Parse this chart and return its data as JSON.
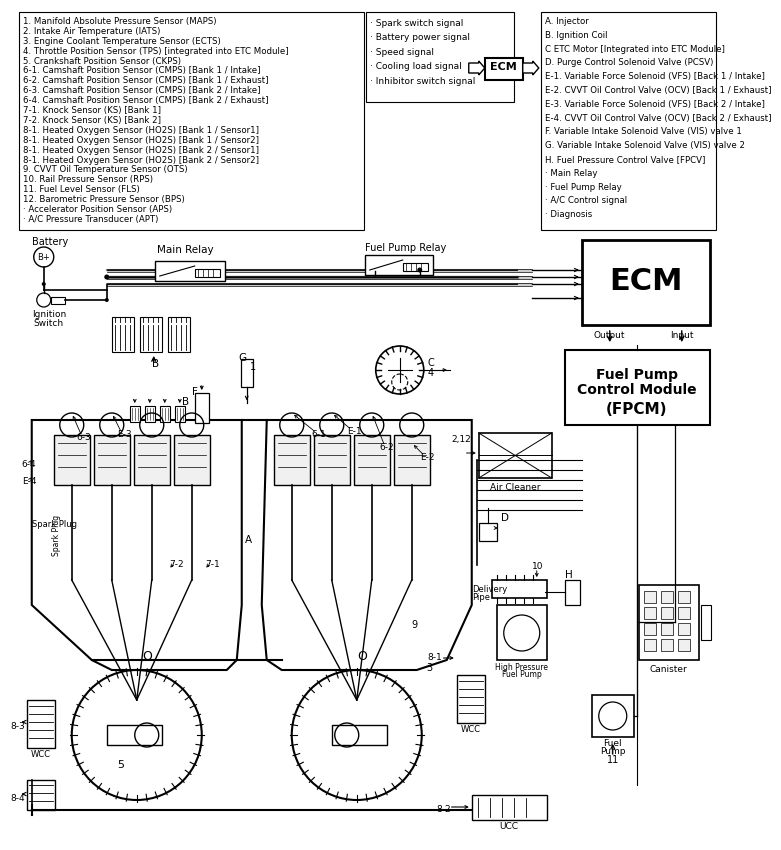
{
  "bg_color": "#ffffff",
  "left_box_items": [
    "1. Manifold Absolute Pressure Sensor (MAPS)",
    "2. Intake Air Temperature (IATS)",
    "3. Engine Coolant Temperature Sensor (ECTS)",
    "4. Throttle Position Sensor (TPS) [integrated into ETC Module]",
    "5. Crankshaft Position Sensor (CKPS)",
    "6-1. Camshaft Position Sensor (CMPS) [Bank 1 / Intake]",
    "6-2. Camshaft Position Sensor (CMPS) [Bank 1 / Exhaust]",
    "6-3. Camshaft Position Sensor (CMPS) [Bank 2 / Intake]",
    "6-4. Camshaft Position Sensor (CMPS) [Bank 2 / Exhaust]",
    "7-1. Knock Sensor (KS) [Bank 1]",
    "7-2. Knock Sensor (KS) [Bank 2]",
    "8-1. Heated Oxygen Sensor (HO2S) [Bank 1 / Sensor1]",
    "8-1. Heated Oxygen Sensor (HO2S) [Bank 1 / Sensor2]",
    "8-1. Heated Oxygen Sensor (HO2S) [Bank 2 / Sensor1]",
    "8-1. Heated Oxygen Sensor (HO2S) [Bank 2 / Sensor2]",
    "9. CVVT Oil Temperature Sensor (OTS)",
    "10. Rail Pressure Sensor (RPS)",
    "11. Fuel Level Sensor (FLS)",
    "12. Barometric Pressure Sensor (BPS)",
    "· Accelerator Position Sensor (APS)",
    "· A/C Pressure Transducer (APT)"
  ],
  "mid_box_items": [
    "· Spark switch signal",
    "· Battery power signal",
    "· Speed signal",
    "· Cooling load signal",
    "· Inhibitor switch signal"
  ],
  "right_box_items": [
    "A. Injector",
    "B. Ignition Coil",
    "C ETC Motor [Integrated into ETC Module]",
    "D. Purge Control Solenoid Valve (PCSV)",
    "E-1. Variable Force Solenoid (VFS) [Back 1 / Intake]",
    "E-2. CVVT Oil Control Valve (OCV) [Back 1 / Exhaust]",
    "E-3. Variable Force Solenoid (VFS) [Back 2 / Intake]",
    "E-4. CVVT Oil Control Valve (OCV) [Back 2 / Exhaust]",
    "F. Variable Intake Solenoid Valve (VIS) valve 1",
    "G. Variable Intake Solenoid Valve (VIS) valve 2",
    "H. Fuel Pressure Control Valve [FPCV]",
    "· Main Relay",
    "· Fuel Pump Relay",
    "· A/C Control signal",
    "· Diagnosis"
  ]
}
